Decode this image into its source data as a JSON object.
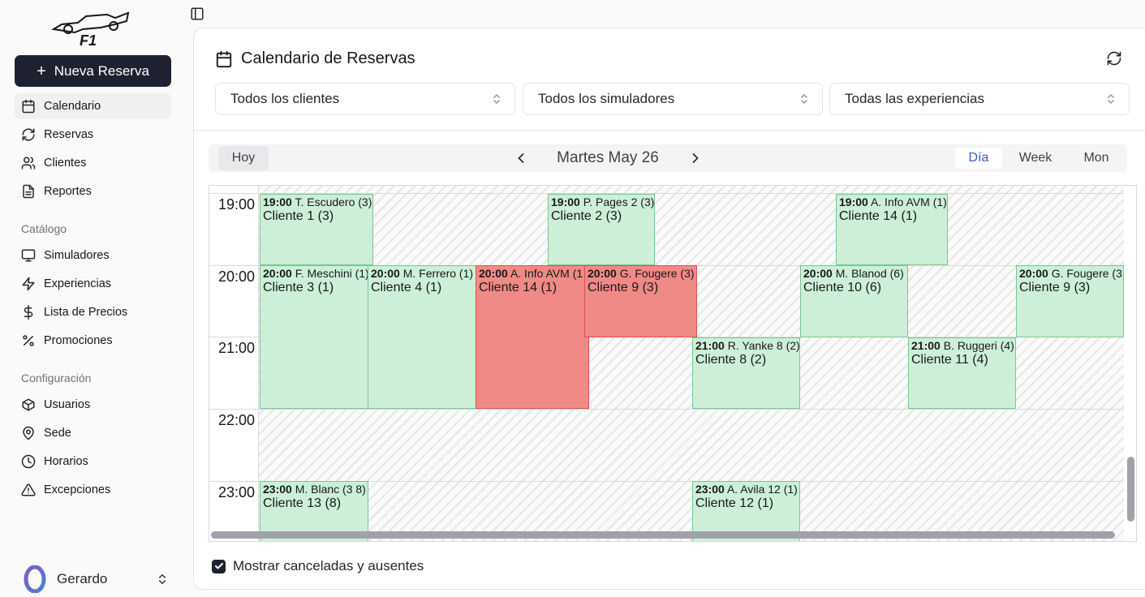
{
  "sidebar": {
    "new_button": "Nueva Reserva",
    "items": [
      {
        "label": "Calendario",
        "icon": "calendar-icon"
      },
      {
        "label": "Reservas",
        "icon": "refresh-icon"
      },
      {
        "label": "Clientes",
        "icon": "users-icon"
      },
      {
        "label": "Reportes",
        "icon": "file-icon"
      }
    ],
    "catalog_title": "Catálogo",
    "catalog_items": [
      {
        "label": "Simuladores",
        "icon": "monitor-icon"
      },
      {
        "label": "Experiencias",
        "icon": "zap-icon"
      },
      {
        "label": "Lista de Precios",
        "icon": "dollar-icon"
      },
      {
        "label": "Promociones",
        "icon": "percent-icon"
      }
    ],
    "config_title": "Configuración",
    "config_items": [
      {
        "label": "Usuarios",
        "icon": "box-icon"
      },
      {
        "label": "Sede",
        "icon": "map-pin-icon"
      },
      {
        "label": "Horarios",
        "icon": "clock-icon"
      },
      {
        "label": "Excepciones",
        "icon": "alert-triangle-icon"
      }
    ],
    "user_name": "Gerardo"
  },
  "main": {
    "title": "Calendario de Reservas",
    "filters": {
      "clients": "Todos los clientes",
      "simulators": "Todos los simuladores",
      "experiences": "Todas las experiencias"
    },
    "toolbar": {
      "today": "Hoy",
      "date": "Martes May 26",
      "views": [
        "Día",
        "Week",
        "Mon"
      ],
      "active_view": "Día"
    },
    "times": [
      "19:00",
      "20:00",
      "21:00",
      "22:00",
      "23:00"
    ],
    "events": [
      {
        "time": "19:00",
        "who": "T. Escudero (3)",
        "client": "Cliente 1 (3)",
        "color": "green"
      },
      {
        "time": "19:00",
        "who": "P. Pages 2 (3)",
        "client": "Cliente 2 (3)",
        "color": "green"
      },
      {
        "time": "19:00",
        "who": "A. Info AVM (1)",
        "client": "Cliente 14 (1)",
        "color": "green"
      },
      {
        "time": "20:00",
        "who": "F. Meschini (1)",
        "client": "Cliente 3 (1)",
        "color": "green"
      },
      {
        "time": "20:00",
        "who": "M. Ferrero (1)",
        "client": "Cliente 4 (1)",
        "color": "green"
      },
      {
        "time": "20:00",
        "who": "A. Info AVM (1",
        "client": "Cliente 14 (1)",
        "color": "red"
      },
      {
        "time": "20:00",
        "who": "G. Fougere (3)",
        "client": "Cliente 9 (3)",
        "color": "red"
      },
      {
        "time": "20:00",
        "who": "M. Blanod (6)",
        "client": "Cliente 10 (6)",
        "color": "green"
      },
      {
        "time": "20:00",
        "who": "G. Fougere (3",
        "client": "Cliente 9 (3)",
        "color": "green"
      },
      {
        "time": "21:00",
        "who": "R. Yanke 8 (2)",
        "client": "Cliente 8 (2)",
        "color": "green"
      },
      {
        "time": "21:00",
        "who": "B. Ruggeri (4)",
        "client": "Cliente 11 (4)",
        "color": "green"
      },
      {
        "time": "23:00",
        "who": "M. Blanc (3 8)",
        "client": "Cliente 13 (8)",
        "color": "green"
      },
      {
        "time": "23:00",
        "who": "A. Avila 12 (1)",
        "client": "Cliente 12 (1)",
        "color": "green"
      }
    ],
    "show_cancelled_label": "Mostrar canceladas y ausentes",
    "show_cancelled": true
  },
  "colors": {
    "event_green": "#cdefd8",
    "event_red": "#f08a86",
    "primary": "#1e2230",
    "active_view": "#3b5bbf"
  }
}
